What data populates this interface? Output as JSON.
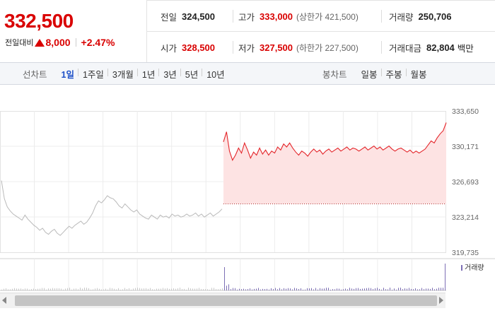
{
  "price": {
    "current": "332,500",
    "change_label": "전일대비",
    "change_value": "8,000",
    "change_pct": "+2.47%"
  },
  "quote": {
    "prev_close": {
      "label": "전일",
      "value": "324,500"
    },
    "high": {
      "label": "고가",
      "value": "333,000",
      "sub": "(상한가 421,500)"
    },
    "volume": {
      "label": "거래량",
      "value": "250,706"
    },
    "open": {
      "label": "시가",
      "value": "328,500"
    },
    "low": {
      "label": "저가",
      "value": "327,500",
      "sub": "(하한가 227,500)"
    },
    "amount": {
      "label": "거래대금",
      "value": "82,804",
      "unit": "백만"
    }
  },
  "toolbar": {
    "line_title": "선차트",
    "line_periods": [
      "1일",
      "1주일",
      "3개월",
      "1년",
      "3년",
      "5년",
      "10년"
    ],
    "active_line_period": "1일",
    "candle_title": "봉차트",
    "candle_periods": [
      "일봉",
      "주봉",
      "월봉"
    ]
  },
  "chart_data": {
    "type": "line",
    "y_ticks": [
      "333,650",
      "330,171",
      "326,693",
      "323,214",
      "319,735"
    ],
    "ylim": [
      319735,
      333650
    ],
    "prev_close": 324500,
    "series": [
      {
        "values_prev_session": [
          326800,
          325000,
          324200,
          323800,
          323500,
          323300,
          323100,
          322900,
          323400,
          323000,
          322700,
          322400,
          322200,
          321900,
          322100,
          321700,
          321500,
          321800,
          322000,
          321600,
          321400,
          321700,
          322000,
          322300,
          322100,
          322400,
          322600,
          322800,
          322500,
          322700,
          323100,
          323600,
          324300,
          324800,
          324600,
          324900,
          325300,
          325100,
          325000,
          324700,
          324300,
          324100,
          324500,
          324200,
          323900,
          323700,
          323900,
          323500,
          323300,
          323100,
          323000,
          323400,
          323200,
          323000,
          323400,
          323200,
          323300,
          323100,
          323500,
          323300,
          323400,
          323200,
          323300,
          323500,
          323300,
          323400,
          323600,
          323300,
          323500,
          323200,
          323400,
          323600,
          323300,
          323500,
          323700,
          324000
        ],
        "values_today": [
          330600,
          331600,
          329700,
          328800,
          329300,
          330000,
          329500,
          330500,
          329800,
          329000,
          329600,
          329300,
          330000,
          329400,
          329800,
          329300,
          329700,
          329500,
          330100,
          329800,
          330400,
          330100,
          330500,
          330000,
          329600,
          329300,
          329700,
          329500,
          329200,
          329600,
          329900,
          329600,
          329800,
          329400,
          329700,
          329900,
          329600,
          329800,
          330000,
          329700,
          329900,
          330100,
          329800,
          330000,
          329900,
          329700,
          329900,
          330100,
          329800,
          330000,
          330200,
          329900,
          330100,
          329800,
          330000,
          330200,
          329900,
          329700,
          329900,
          330000,
          329800,
          329600,
          329800,
          329500,
          329700,
          329500,
          329700,
          329900,
          330300,
          330700,
          330500,
          331000,
          331400,
          331700,
          332500
        ]
      }
    ],
    "volume_label": "거래량"
  }
}
